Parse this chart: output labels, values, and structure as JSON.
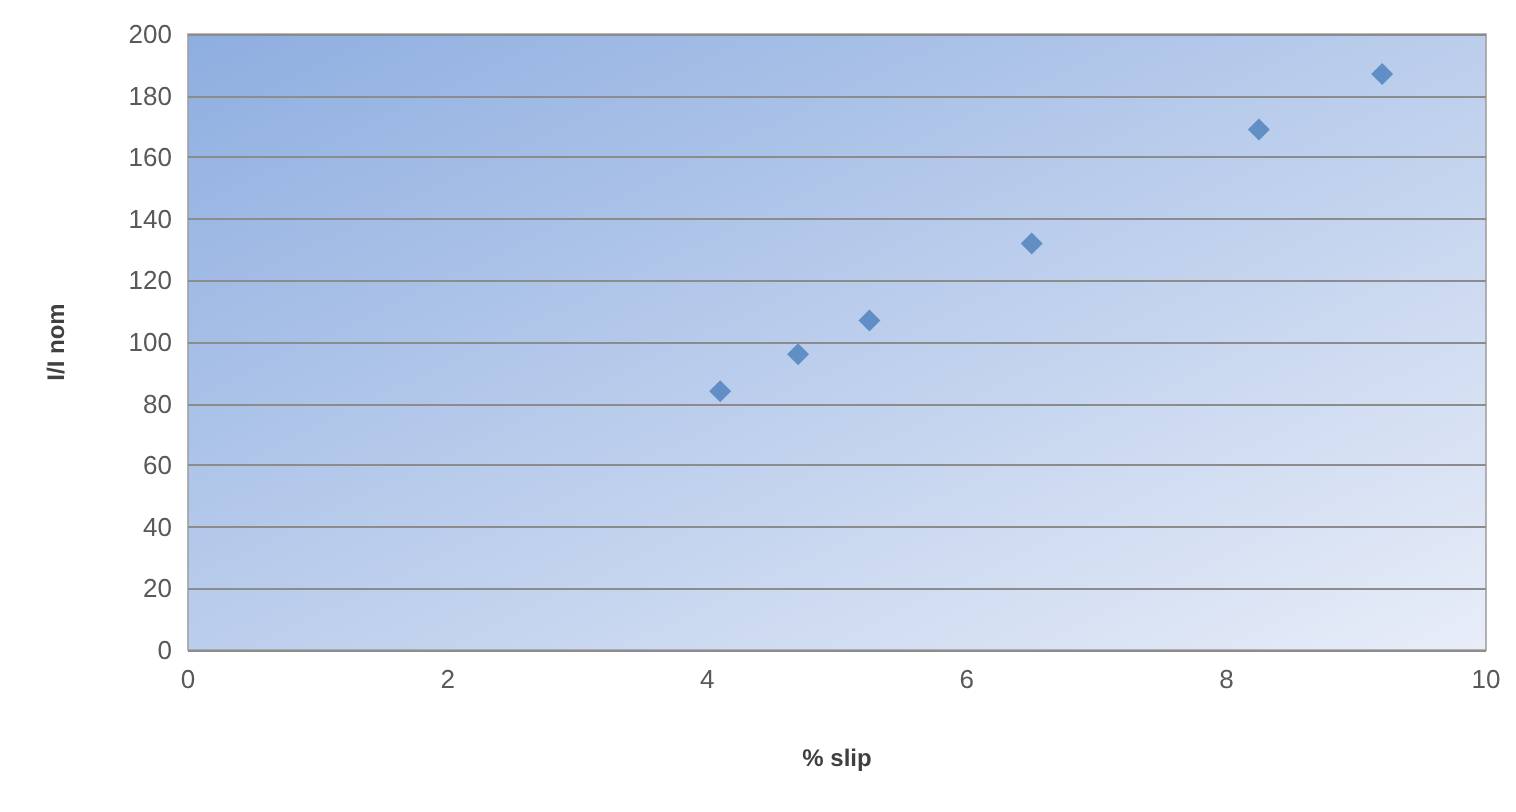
{
  "chart_data": {
    "type": "scatter",
    "xlabel": "% slip",
    "ylabel": "I/I nom",
    "x": [
      4.1,
      4.7,
      5.25,
      6.5,
      8.25,
      9.2
    ],
    "series": [
      {
        "color": "#4a7ebb",
        "values": [
          84,
          96,
          107,
          132,
          169,
          187
        ]
      }
    ],
    "xlim": [
      0,
      10
    ],
    "xticks": [
      0,
      2,
      4,
      6,
      8,
      10
    ],
    "ylim": [
      0,
      200
    ],
    "yticks": [
      0,
      20,
      40,
      60,
      80,
      100,
      120,
      140,
      160,
      180,
      200
    ],
    "grid": "y",
    "marker": "diamond"
  }
}
